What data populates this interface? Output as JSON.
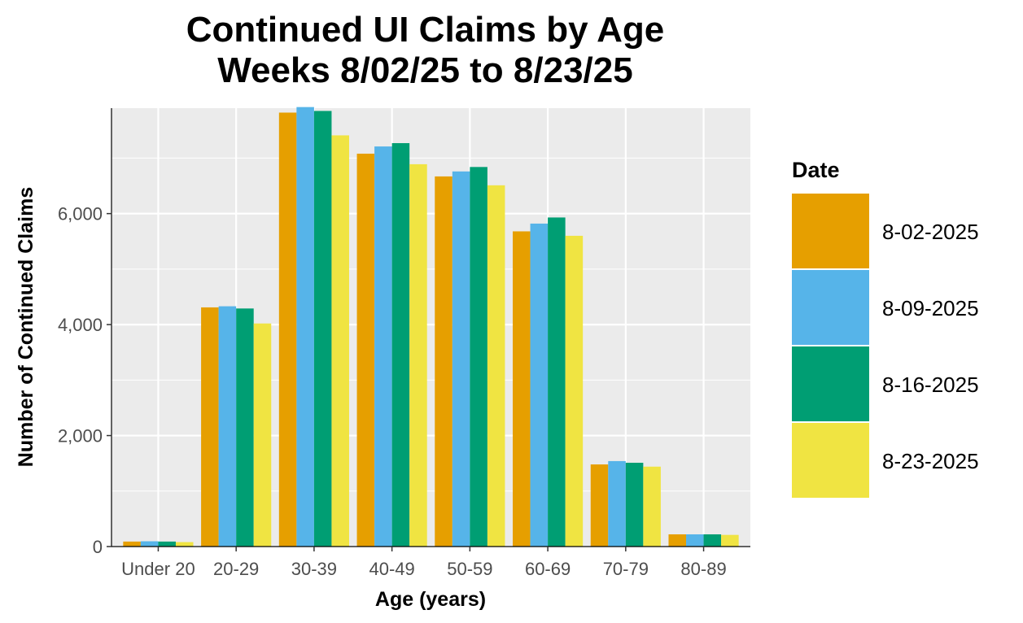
{
  "chart_data": {
    "type": "bar",
    "title_lines": [
      "Continued UI Claims by Age",
      "Weeks 8/02/25 to 8/23/25"
    ],
    "xlabel": "Age (years)",
    "ylabel": "Number of Continued Claims",
    "categories": [
      "Under 20",
      "20-29",
      "30-39",
      "40-49",
      "50-59",
      "60-69",
      "70-79",
      "80-89"
    ],
    "ylim": [
      0,
      7900
    ],
    "yticks": [
      0,
      2000,
      4000,
      6000
    ],
    "ytick_labels": [
      "0",
      "2,000",
      "4,000",
      "6,000"
    ],
    "grid": true,
    "legend_title": "Date",
    "legend_position": "right",
    "series": [
      {
        "name": "8-02-2025",
        "color": "#E69F00",
        "values": [
          90,
          4310,
          7820,
          7080,
          6670,
          5680,
          1480,
          220
        ]
      },
      {
        "name": "8-09-2025",
        "color": "#56B4E9",
        "values": [
          95,
          4330,
          7920,
          7210,
          6760,
          5820,
          1540,
          220
        ]
      },
      {
        "name": "8-16-2025",
        "color": "#009E73",
        "values": [
          90,
          4290,
          7850,
          7270,
          6840,
          5930,
          1510,
          220
        ]
      },
      {
        "name": "8-23-2025",
        "color": "#F0E442",
        "values": [
          80,
          4020,
          7410,
          6890,
          6510,
          5600,
          1440,
          210
        ]
      }
    ]
  }
}
